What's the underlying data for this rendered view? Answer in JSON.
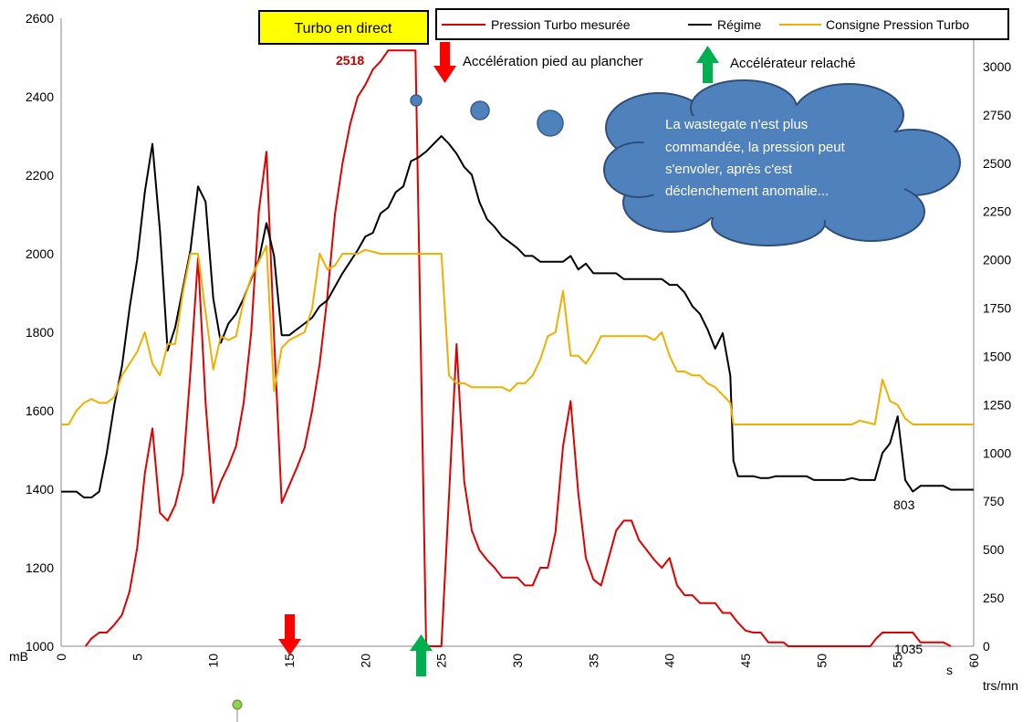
{
  "chart_data": {
    "type": "line",
    "title": "",
    "xlabel": "s",
    "ylabel_left": "mB",
    "ylabel_right": "trs/mn",
    "xlim": [
      0,
      60
    ],
    "ylim_left": [
      1000,
      2600
    ],
    "ylim_right": [
      0,
      3250
    ],
    "x_ticks": [
      0,
      5,
      10,
      15,
      20,
      25,
      30,
      35,
      40,
      45,
      50,
      55,
      60
    ],
    "y_ticks_left": [
      1000,
      1200,
      1400,
      1600,
      1800,
      2000,
      2200,
      2400,
      2600
    ],
    "y_ticks_right": [
      0,
      250,
      500,
      750,
      1000,
      1250,
      1500,
      1750,
      2000,
      2250,
      2500,
      2750,
      3000
    ],
    "grid": false,
    "legend_position": "top",
    "series": [
      {
        "name": "Pression Turbo mesurée",
        "axis": "left",
        "color": "#e00000",
        "points": [
          [
            1.6,
            1000
          ],
          [
            2.0,
            1020
          ],
          [
            2.5,
            1035
          ],
          [
            3.0,
            1035
          ],
          [
            3.5,
            1055
          ],
          [
            4.0,
            1080
          ],
          [
            4.5,
            1140
          ],
          [
            5.0,
            1250
          ],
          [
            5.5,
            1440
          ],
          [
            6.0,
            1555
          ],
          [
            6.5,
            1340
          ],
          [
            7.0,
            1320
          ],
          [
            7.5,
            1360
          ],
          [
            8.0,
            1440
          ],
          [
            8.5,
            1700
          ],
          [
            9.0,
            1990
          ],
          [
            9.5,
            1620
          ],
          [
            10.0,
            1365
          ],
          [
            10.5,
            1420
          ],
          [
            11.0,
            1460
          ],
          [
            11.5,
            1510
          ],
          [
            12.0,
            1620
          ],
          [
            12.5,
            1800
          ],
          [
            13.0,
            2110
          ],
          [
            13.5,
            2260
          ],
          [
            14.0,
            1790
          ],
          [
            14.5,
            1365
          ],
          [
            15.0,
            1410
          ],
          [
            15.5,
            1455
          ],
          [
            16.0,
            1505
          ],
          [
            16.5,
            1600
          ],
          [
            17.0,
            1720
          ],
          [
            17.5,
            1890
          ],
          [
            18.0,
            2100
          ],
          [
            18.5,
            2230
          ],
          [
            19.0,
            2330
          ],
          [
            19.5,
            2400
          ],
          [
            20.0,
            2430
          ],
          [
            20.5,
            2470
          ],
          [
            21.0,
            2490
          ],
          [
            21.5,
            2518
          ],
          [
            22.0,
            2518
          ],
          [
            23.0,
            2518
          ],
          [
            23.3,
            2518
          ],
          [
            24.0,
            1000
          ],
          [
            25.0,
            1000
          ],
          [
            25.5,
            1380
          ],
          [
            26.0,
            1770
          ],
          [
            26.5,
            1420
          ],
          [
            27.0,
            1295
          ],
          [
            27.5,
            1245
          ],
          [
            28.0,
            1220
          ],
          [
            28.5,
            1200
          ],
          [
            29.0,
            1175
          ],
          [
            30.0,
            1175
          ],
          [
            30.5,
            1155
          ],
          [
            31.0,
            1155
          ],
          [
            31.5,
            1200
          ],
          [
            32.0,
            1200
          ],
          [
            32.5,
            1290
          ],
          [
            33.0,
            1510
          ],
          [
            33.5,
            1625
          ],
          [
            34.0,
            1390
          ],
          [
            34.5,
            1225
          ],
          [
            35.0,
            1170
          ],
          [
            35.5,
            1155
          ],
          [
            36.0,
            1225
          ],
          [
            36.5,
            1295
          ],
          [
            37.0,
            1320
          ],
          [
            37.5,
            1320
          ],
          [
            38.0,
            1270
          ],
          [
            38.5,
            1245
          ],
          [
            39.0,
            1220
          ],
          [
            39.5,
            1200
          ],
          [
            40.0,
            1225
          ],
          [
            40.5,
            1155
          ],
          [
            41.0,
            1130
          ],
          [
            41.5,
            1130
          ],
          [
            42.0,
            1110
          ],
          [
            43.0,
            1110
          ],
          [
            43.5,
            1085
          ],
          [
            44.0,
            1085
          ],
          [
            44.5,
            1060
          ],
          [
            45.0,
            1040
          ],
          [
            45.5,
            1035
          ],
          [
            46.0,
            1035
          ],
          [
            46.5,
            1010
          ],
          [
            47.0,
            1010
          ],
          [
            47.5,
            1010
          ],
          [
            47.8,
            1000
          ],
          [
            53.2,
            1000
          ],
          [
            53.6,
            1020
          ],
          [
            54.0,
            1035
          ],
          [
            56.0,
            1035
          ],
          [
            56.5,
            1010
          ],
          [
            58.0,
            1010
          ],
          [
            58.5,
            1000
          ]
        ]
      },
      {
        "name": "Régime",
        "axis": "right",
        "color": "#000000",
        "points": [
          [
            0,
            800
          ],
          [
            1.0,
            800
          ],
          [
            1.5,
            770
          ],
          [
            2.0,
            770
          ],
          [
            2.5,
            800
          ],
          [
            3.0,
            1000
          ],
          [
            3.5,
            1250
          ],
          [
            4.0,
            1450
          ],
          [
            4.5,
            1750
          ],
          [
            5.0,
            2000
          ],
          [
            5.5,
            2350
          ],
          [
            6.0,
            2600
          ],
          [
            6.5,
            2150
          ],
          [
            7.0,
            1530
          ],
          [
            7.5,
            1650
          ],
          [
            8.0,
            1850
          ],
          [
            8.5,
            2050
          ],
          [
            9.0,
            2380
          ],
          [
            9.5,
            2300
          ],
          [
            10.0,
            1800
          ],
          [
            10.5,
            1570
          ],
          [
            11.0,
            1670
          ],
          [
            11.5,
            1720
          ],
          [
            12.0,
            1800
          ],
          [
            12.5,
            1900
          ],
          [
            13.0,
            2000
          ],
          [
            13.5,
            2190
          ],
          [
            14.0,
            2020
          ],
          [
            14.5,
            1610
          ],
          [
            15.0,
            1610
          ],
          [
            15.5,
            1640
          ],
          [
            16.0,
            1670
          ],
          [
            16.5,
            1700
          ],
          [
            17.0,
            1760
          ],
          [
            17.5,
            1790
          ],
          [
            18.0,
            1860
          ],
          [
            18.5,
            1930
          ],
          [
            19.0,
            1990
          ],
          [
            19.5,
            2050
          ],
          [
            20.0,
            2120
          ],
          [
            20.5,
            2140
          ],
          [
            21.0,
            2240
          ],
          [
            21.5,
            2270
          ],
          [
            22.0,
            2350
          ],
          [
            22.5,
            2380
          ],
          [
            23.0,
            2510
          ],
          [
            23.5,
            2530
          ],
          [
            24.0,
            2560
          ],
          [
            24.5,
            2600
          ],
          [
            25.0,
            2640
          ],
          [
            25.5,
            2600
          ],
          [
            26.0,
            2550
          ],
          [
            26.5,
            2480
          ],
          [
            27.0,
            2440
          ],
          [
            27.5,
            2300
          ],
          [
            28.0,
            2210
          ],
          [
            28.5,
            2170
          ],
          [
            29.0,
            2120
          ],
          [
            29.5,
            2090
          ],
          [
            30.0,
            2060
          ],
          [
            30.5,
            2020
          ],
          [
            31.0,
            2020
          ],
          [
            31.5,
            1990
          ],
          [
            32.0,
            1990
          ],
          [
            32.5,
            1990
          ],
          [
            33.0,
            1990
          ],
          [
            33.5,
            2020
          ],
          [
            34.0,
            1950
          ],
          [
            34.5,
            1980
          ],
          [
            35.0,
            1930
          ],
          [
            35.5,
            1930
          ],
          [
            36.0,
            1930
          ],
          [
            36.5,
            1930
          ],
          [
            37.0,
            1900
          ],
          [
            38.0,
            1900
          ],
          [
            39.0,
            1900
          ],
          [
            39.5,
            1900
          ],
          [
            40.0,
            1870
          ],
          [
            40.5,
            1870
          ],
          [
            41.0,
            1830
          ],
          [
            41.5,
            1760
          ],
          [
            42.0,
            1720
          ],
          [
            42.5,
            1640
          ],
          [
            43.0,
            1540
          ],
          [
            43.5,
            1620
          ],
          [
            44.0,
            1400
          ],
          [
            44.2,
            960
          ],
          [
            44.5,
            880
          ],
          [
            45.0,
            880
          ],
          [
            45.5,
            880
          ],
          [
            46.0,
            870
          ],
          [
            46.5,
            870
          ],
          [
            47.0,
            880
          ],
          [
            48.0,
            880
          ],
          [
            49.0,
            880
          ],
          [
            49.5,
            860
          ],
          [
            50.0,
            860
          ],
          [
            51.0,
            860
          ],
          [
            51.5,
            860
          ],
          [
            52.0,
            870
          ],
          [
            52.5,
            860
          ],
          [
            53.0,
            860
          ],
          [
            53.2,
            860
          ],
          [
            53.5,
            860
          ],
          [
            54.0,
            1000
          ],
          [
            54.5,
            1050
          ],
          [
            55.0,
            1190
          ],
          [
            55.5,
            860
          ],
          [
            56.0,
            800
          ],
          [
            56.5,
            830
          ],
          [
            57.0,
            830
          ],
          [
            58.0,
            830
          ],
          [
            58.5,
            810
          ],
          [
            59.5,
            810
          ],
          [
            60,
            810
          ]
        ]
      },
      {
        "name": "Consigne Pression Turbo",
        "axis": "left",
        "color": "#f0b000",
        "points": [
          [
            0,
            1565
          ],
          [
            0.5,
            1565
          ],
          [
            1.0,
            1600
          ],
          [
            1.5,
            1620
          ],
          [
            2.0,
            1630
          ],
          [
            2.5,
            1620
          ],
          [
            3.0,
            1620
          ],
          [
            3.5,
            1635
          ],
          [
            4.0,
            1690
          ],
          [
            4.5,
            1720
          ],
          [
            5.0,
            1750
          ],
          [
            5.5,
            1800
          ],
          [
            6.0,
            1720
          ],
          [
            6.5,
            1690
          ],
          [
            7.0,
            1770
          ],
          [
            7.5,
            1770
          ],
          [
            8.0,
            1900
          ],
          [
            8.5,
            2000
          ],
          [
            9.0,
            2000
          ],
          [
            9.5,
            1850
          ],
          [
            10.0,
            1705
          ],
          [
            10.5,
            1790
          ],
          [
            11.0,
            1780
          ],
          [
            11.5,
            1790
          ],
          [
            12.0,
            1880
          ],
          [
            12.5,
            1940
          ],
          [
            13.0,
            1980
          ],
          [
            13.5,
            2020
          ],
          [
            14.0,
            1650
          ],
          [
            14.5,
            1760
          ],
          [
            15.0,
            1780
          ],
          [
            15.5,
            1790
          ],
          [
            16.0,
            1800
          ],
          [
            16.5,
            1860
          ],
          [
            17.0,
            2000
          ],
          [
            17.5,
            1960
          ],
          [
            18.0,
            1970
          ],
          [
            18.5,
            2000
          ],
          [
            19.0,
            2000
          ],
          [
            19.5,
            2000
          ],
          [
            20.0,
            2010
          ],
          [
            21.0,
            2000
          ],
          [
            25.0,
            2000
          ],
          [
            25.5,
            1690
          ],
          [
            26.0,
            1670
          ],
          [
            26.5,
            1670
          ],
          [
            27.0,
            1660
          ],
          [
            28.0,
            1660
          ],
          [
            29.0,
            1660
          ],
          [
            29.5,
            1650
          ],
          [
            30.0,
            1670
          ],
          [
            30.5,
            1670
          ],
          [
            31.0,
            1690
          ],
          [
            31.5,
            1730
          ],
          [
            32.0,
            1790
          ],
          [
            32.5,
            1800
          ],
          [
            33.0,
            1905
          ],
          [
            33.5,
            1740
          ],
          [
            34.0,
            1740
          ],
          [
            34.5,
            1720
          ],
          [
            35.0,
            1750
          ],
          [
            35.5,
            1790
          ],
          [
            36.0,
            1790
          ],
          [
            37.0,
            1790
          ],
          [
            38.0,
            1790
          ],
          [
            38.5,
            1790
          ],
          [
            39.0,
            1780
          ],
          [
            39.5,
            1800
          ],
          [
            40.0,
            1740
          ],
          [
            40.5,
            1700
          ],
          [
            41.0,
            1700
          ],
          [
            41.5,
            1690
          ],
          [
            42.0,
            1690
          ],
          [
            42.5,
            1670
          ],
          [
            43.0,
            1660
          ],
          [
            43.5,
            1640
          ],
          [
            44.0,
            1620
          ],
          [
            44.2,
            1565
          ],
          [
            45.0,
            1565
          ],
          [
            50.0,
            1565
          ],
          [
            51.0,
            1565
          ],
          [
            52.0,
            1565
          ],
          [
            52.5,
            1575
          ],
          [
            53.5,
            1565
          ],
          [
            54.0,
            1680
          ],
          [
            54.5,
            1625
          ],
          [
            55.0,
            1615
          ],
          [
            55.5,
            1580
          ],
          [
            56.0,
            1565
          ],
          [
            58.0,
            1565
          ],
          [
            60,
            1565
          ]
        ]
      }
    ],
    "annotations": {
      "turbo_box": "Turbo en direct",
      "peak_label": "2518",
      "accel_full": "Accélération  pied au plancher",
      "accel_release": "Accélérateur relaché",
      "cloud_lines": [
        "La wastegate n'est plus",
        "commandée, la pression peut",
        "s'envoler, après c'est",
        "déclenchement  anomalie..."
      ],
      "label_803": "803",
      "label_1035": "1035"
    }
  }
}
